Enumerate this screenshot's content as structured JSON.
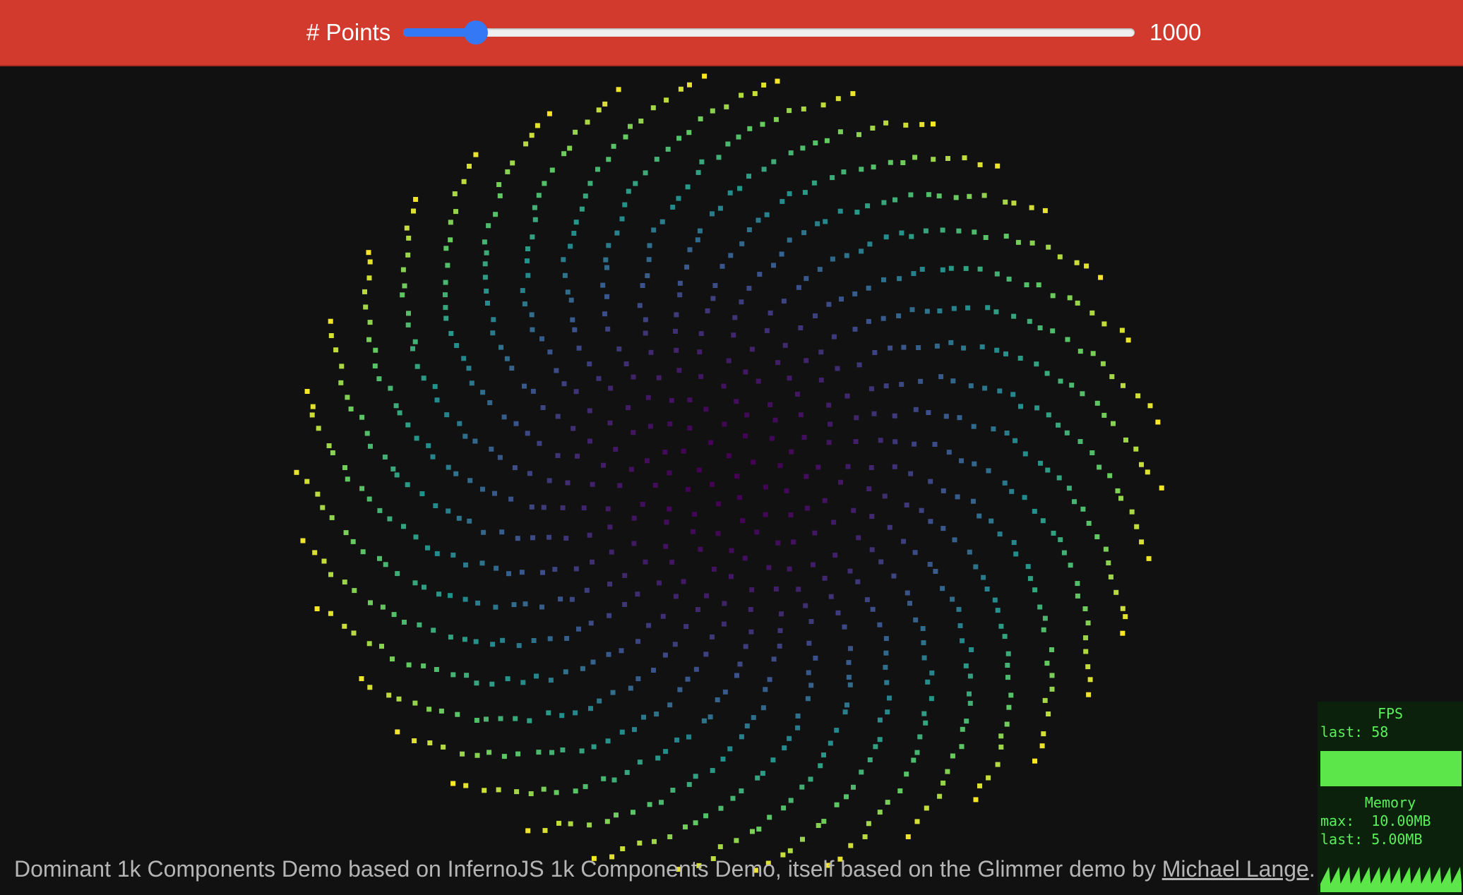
{
  "controls": {
    "points_label": "# Points",
    "slider_value": 1000,
    "slider_min": 10,
    "slider_max": 10000,
    "points_value": "1000"
  },
  "footer": {
    "text": "Dominant 1k Components Demo based on InfernoJS 1k Components Demo, itself based on the Glimmer demo by ",
    "link_text": "Michael Lange",
    "suffix": "."
  },
  "stats": {
    "fps_title": "FPS",
    "fps_last": "last: 58",
    "memory_title": "Memory",
    "memory_max": "max:  10.00MB",
    "memory_last": "last: 5.00MB"
  },
  "colors": {
    "header_bg": "#d23a2e",
    "page_bg": "#111111",
    "slider_accent": "#3478f6",
    "stats_green": "#5af05a",
    "viridis": [
      "#440154",
      "#3b528b",
      "#21918c",
      "#5ec962",
      "#fde725"
    ]
  }
}
